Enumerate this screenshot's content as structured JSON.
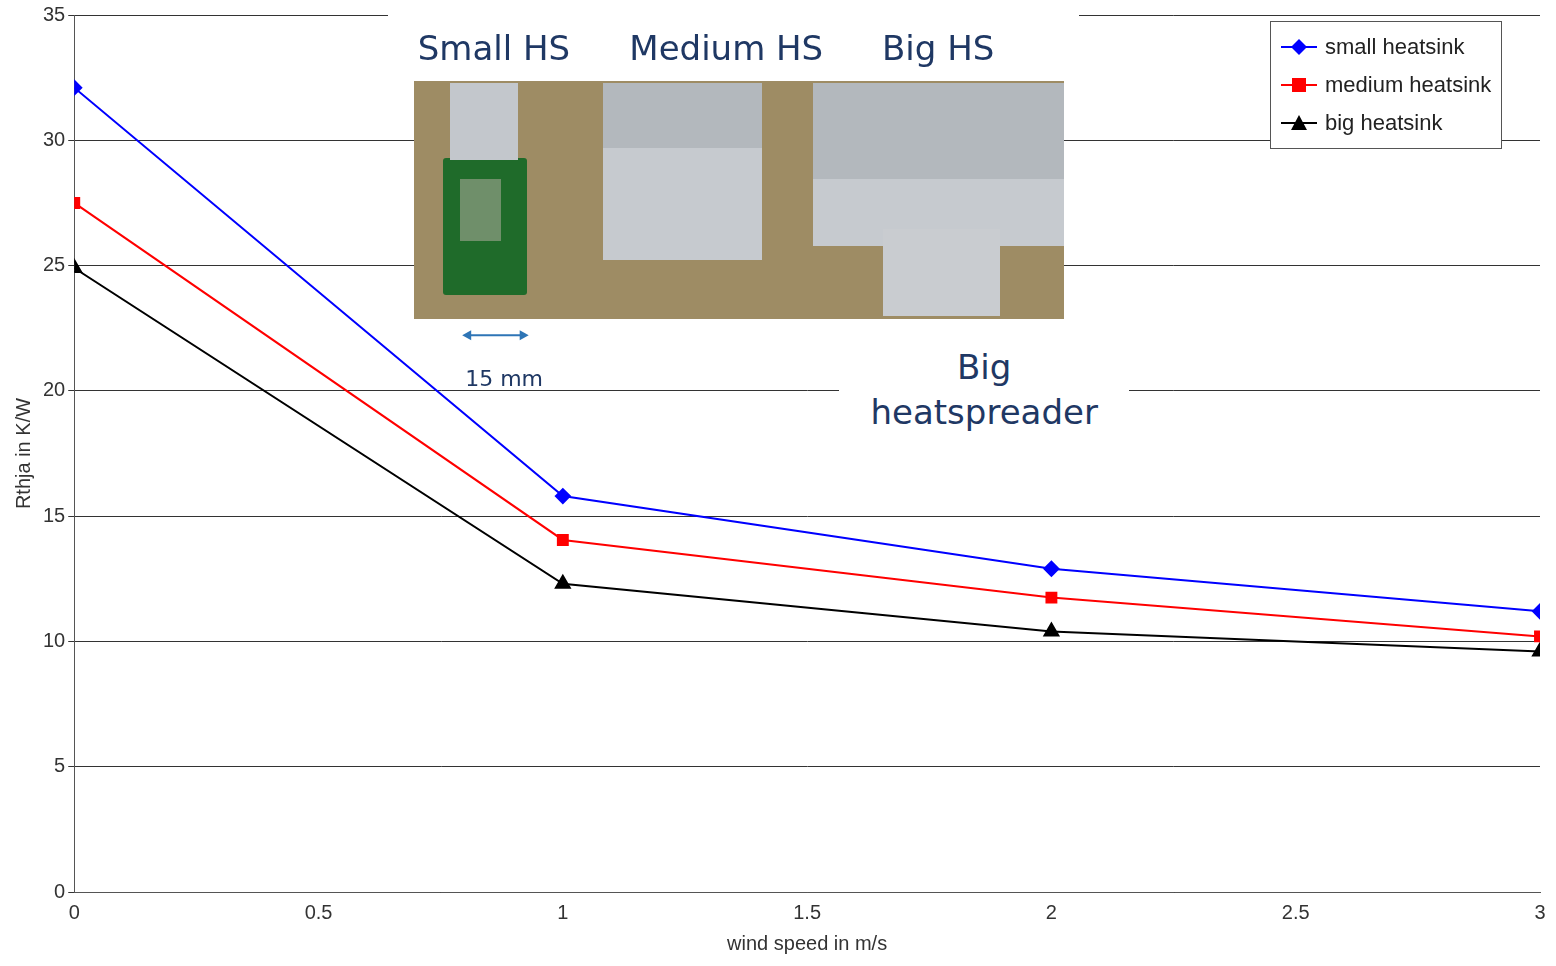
{
  "chart_data": {
    "type": "line",
    "x": [
      0,
      1,
      2,
      3
    ],
    "series": [
      {
        "name": "small heatsink",
        "color": "#0000ff",
        "marker": "diamond",
        "values": [
          32.1,
          15.8,
          12.9,
          11.2
        ]
      },
      {
        "name": "medium heatsink",
        "color": "#ff0000",
        "marker": "square",
        "values": [
          27.5,
          14.05,
          11.75,
          10.2
        ]
      },
      {
        "name": "big heatsink",
        "color": "#000000",
        "marker": "triangle",
        "values": [
          24.9,
          12.3,
          10.4,
          9.6
        ]
      }
    ],
    "xlim": [
      0,
      3
    ],
    "xticks": [
      0,
      0.5,
      1,
      1.5,
      2,
      2.5,
      3
    ],
    "ylim": [
      0,
      35
    ],
    "yticks": [
      0,
      5,
      10,
      15,
      20,
      25,
      30,
      35
    ],
    "x_label": "wind speed in m/s",
    "y_label": "Rthja in K/W",
    "grid": true,
    "legend": "upper right",
    "annotations": [
      "Small HS",
      "Medium HS",
      "Big HS",
      "15 mm",
      "Big heatspreader"
    ]
  }
}
